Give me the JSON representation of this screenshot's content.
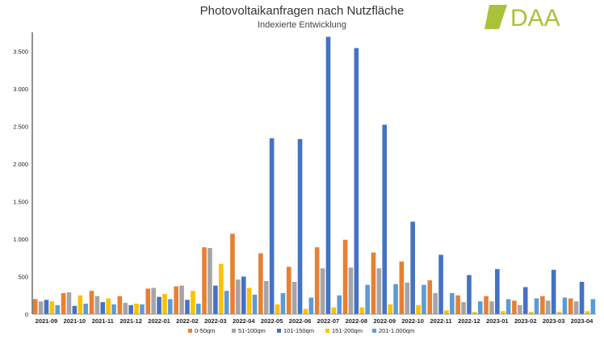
{
  "chart_data": {
    "type": "bar",
    "title": "Photovoltaikanfragen nach Nutzfläche",
    "subtitle": "Indexierte Entwicklung",
    "ylim": [
      0,
      3750
    ],
    "yticks": [
      0,
      500,
      1000,
      1500,
      2000,
      2500,
      3000,
      3500
    ],
    "ytick_labels": [
      "0",
      "500",
      "1.000",
      "1.500",
      "2.000",
      "2.500",
      "3.000",
      "3.500"
    ],
    "grid": false,
    "legend_position": "bottom",
    "categories": [
      "2021-09",
      "2021-10",
      "2021-11",
      "2021-12",
      "2022-01",
      "2022-02",
      "2022-03",
      "2022-04",
      "2022-05",
      "2022-06",
      "2022-07",
      "2022-08",
      "2022-09",
      "2022-10",
      "2022-11",
      "2022-12",
      "2023-01",
      "2023-02",
      "2023-03",
      "2023-04"
    ],
    "series": [
      {
        "name": "0-50qm",
        "color": "#e97f33",
        "values": [
          200,
          280,
          310,
          240,
          340,
          370,
          890,
          1070,
          810,
          630,
          890,
          990,
          820,
          700,
          450,
          250,
          240,
          180,
          240,
          210
        ]
      },
      {
        "name": "51-100qm",
        "color": "#a5a5a5",
        "values": [
          170,
          290,
          240,
          150,
          350,
          380,
          880,
          460,
          440,
          430,
          610,
          620,
          610,
          420,
          280,
          160,
          170,
          120,
          180,
          170
        ]
      },
      {
        "name": "101-150qm",
        "color": "#4472c4",
        "values": [
          190,
          110,
          160,
          120,
          230,
          190,
          380,
          500,
          2340,
          2330,
          3690,
          3540,
          2520,
          1230,
          790,
          520,
          600,
          360,
          590,
          430
        ]
      },
      {
        "name": "151-200qm",
        "color": "#ffc000",
        "values": [
          170,
          250,
          210,
          140,
          270,
          310,
          670,
          350,
          130,
          70,
          90,
          90,
          130,
          120,
          50,
          30,
          40,
          30,
          30,
          40
        ]
      },
      {
        "name": "201-1.000qm",
        "color": "#5b9bd5",
        "values": [
          120,
          140,
          130,
          130,
          200,
          140,
          310,
          260,
          280,
          220,
          250,
          390,
          400,
          390,
          280,
          170,
          200,
          210,
          220,
          200
        ]
      }
    ]
  },
  "logo": {
    "text": "DAA"
  }
}
